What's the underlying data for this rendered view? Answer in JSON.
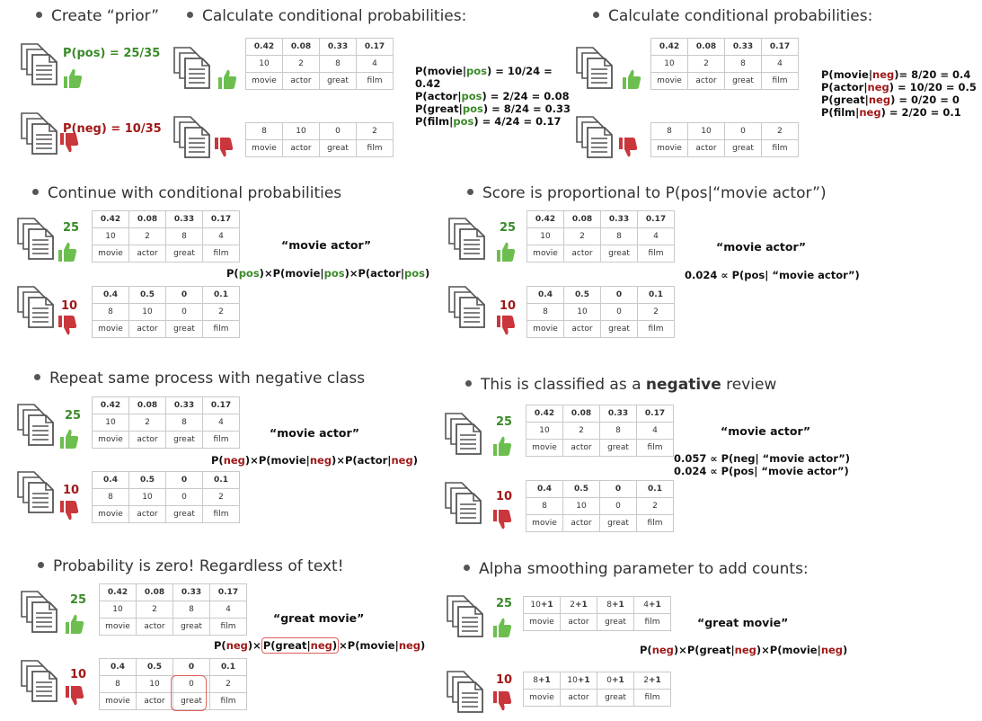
{
  "bullets": {
    "create_prior": "Create “prior”",
    "calc1": "Calculate conditional probabilities:",
    "calc2": "Calculate conditional probabilities:",
    "continue": "Continue with conditional probabilities",
    "score_pre": "Score is proportional to P(pos|“movie actor”)",
    "repeat": "Repeat same process with negative class",
    "classified_pre": "This is classified as a ",
    "classified_bold": "negative",
    "classified_post": " review",
    "zero": "Probability is zero! Regardless of text!",
    "alpha": "Alpha smoothing parameter to add counts:"
  },
  "prior": {
    "pos": "P(pos) = 25/35",
    "neg": "P(neg) = 10/35"
  },
  "words": [
    "movie",
    "actor",
    "great",
    "film"
  ],
  "pos_probs": [
    "0.42",
    "0.08",
    "0.33",
    "0.17"
  ],
  "pos_counts": [
    "10",
    "2",
    "8",
    "4"
  ],
  "neg_probs": [
    "0.4",
    "0.5",
    "0",
    "0.1"
  ],
  "neg_counts": [
    "8",
    "10",
    "0",
    "2"
  ],
  "doc_counts": {
    "pos": "25",
    "neg": "10"
  },
  "smoothed": {
    "plus": "+1",
    "pos_counts": [
      "10",
      "2",
      "8",
      "4"
    ],
    "neg_counts": [
      "8",
      "10",
      "0",
      "2"
    ]
  },
  "cond_pos": {
    "p_open": "P(",
    "close": ")",
    "bar": "|",
    "pos": "pos",
    "movie": "movie",
    "actor": "actor",
    "great": "great",
    "film": "film",
    "movie_val": " = 10/24 =",
    "movie_val2": "0.42",
    "actor_val": " = 2/24 = 0.08",
    "great_val": " = 8/24 = 0.33",
    "film_val": " = 4/24 = 0.17"
  },
  "cond_neg": {
    "neg": "neg",
    "movie_val": "= 8/20 = 0.4",
    "actor_val": " = 10/20 = 0.5",
    "great_val": " = 0/20 = 0",
    "film_val": " = 2/20 = 0.1"
  },
  "phrases": {
    "movie_actor": "“movie actor”",
    "great_movie": "“great movie”"
  },
  "formula": {
    "p": "P(",
    "close": ")",
    "times": "×",
    "pipe": "|",
    "pos": "pos",
    "neg": "neg",
    "movie": "movie",
    "actor": "actor",
    "great": "great"
  },
  "scores": {
    "pos_score": "0.024 ∝ P(pos| “movie actor”)",
    "neg_score": "0.057 ∝ P(neg| “movie actor”)"
  },
  "colors": {
    "green": "#3b8a2a",
    "red": "#a11818",
    "highlight": "#e0605a"
  }
}
